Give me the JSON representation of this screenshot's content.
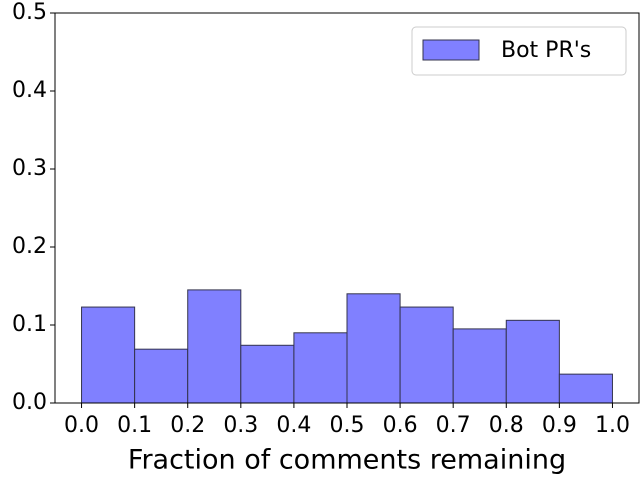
{
  "chart_data": {
    "type": "histogram",
    "x_label": "Fraction of comments remaining",
    "bins": [
      {
        "value": 0,
        "label": "0.0"
      },
      0.1,
      0.2,
      0.3,
      0.4,
      0.5,
      0.6,
      0.7,
      0.8,
      0.9,
      {
        "value": 1,
        "label": "1.0"
      }
    ],
    "series": [
      {
        "name": "Bot PR's",
        "color": "#8080ff",
        "values": [
          0.123,
          0.069,
          0.145,
          0.074,
          0.09,
          0.14,
          0.123,
          0.095,
          0.106,
          0.037
        ]
      }
    ],
    "xlim": [
      -0.05,
      1.05
    ],
    "xticks": [
      {
        "value": 0,
        "label": "0.0"
      },
      0.1,
      0.2,
      0.3,
      0.4,
      0.5,
      0.6,
      0.7,
      0.8,
      0.9,
      {
        "value": 1,
        "label": "1.0"
      }
    ],
    "ylim": [
      0,
      0.5
    ],
    "yticks": [
      {
        "value": 0,
        "label": "0.0"
      },
      0.1,
      0.2,
      0.3,
      0.4,
      0.5
    ],
    "legend": "upper right"
  }
}
